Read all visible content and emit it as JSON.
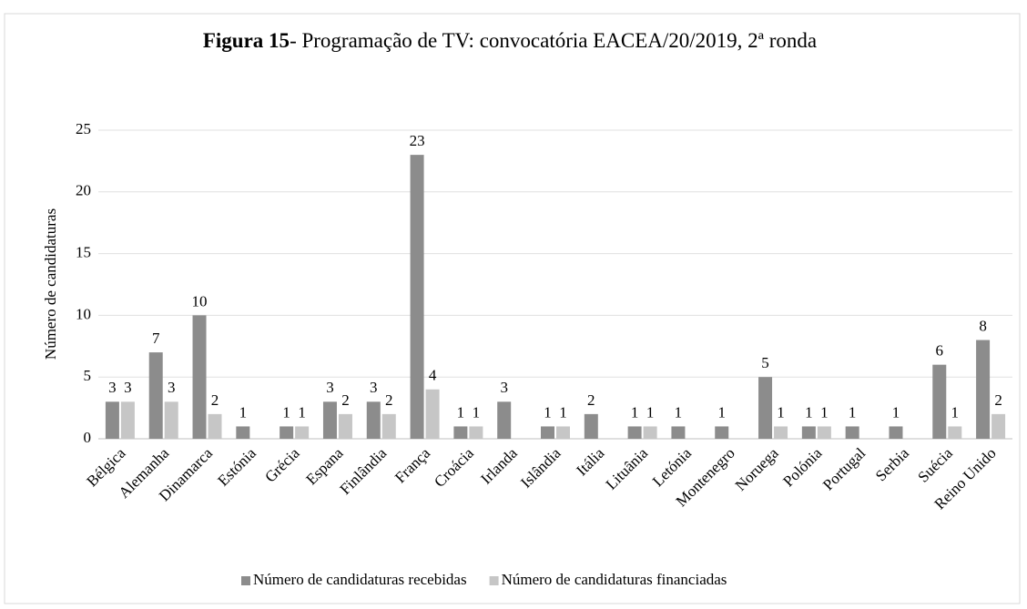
{
  "chart_data": {
    "type": "bar",
    "title": [
      "Figura 15",
      "- Programação de TV: convocatória EACEA/20/2019, 2ª ronda"
    ],
    "y_label": "Número de candidaturas",
    "categories": [
      "Bélgica",
      "Alemanha",
      "Dinamarca",
      "Estónia",
      "Grécia",
      "Espana",
      "Finlândia",
      "França",
      "Croácia",
      "Irlanda",
      "Islândia",
      "Itália",
      "Lituânia",
      "Letónia",
      "Montenegro",
      "Noruega",
      "Polónia",
      "Portugal",
      "Serbia",
      "Suécia",
      "Reino Unido"
    ],
    "series": [
      {
        "name": "Número de candidaturas recebidas",
        "color": "#8c8c8c",
        "values": [
          3,
          7,
          10,
          1,
          1,
          3,
          3,
          23,
          1,
          3,
          1,
          2,
          1,
          1,
          1,
          5,
          1,
          1,
          1,
          6,
          8
        ]
      },
      {
        "name": "Número de candidaturas financiadas",
        "color": "#c6c6c6",
        "values": [
          3,
          3,
          2,
          null,
          1,
          2,
          2,
          4,
          1,
          null,
          1,
          null,
          1,
          null,
          null,
          1,
          1,
          null,
          null,
          1,
          2
        ]
      }
    ],
    "ylim": [
      0,
      25
    ],
    "yticks": [
      0,
      5,
      10,
      15,
      20,
      25
    ],
    "grid": true,
    "legend": "bottom"
  }
}
